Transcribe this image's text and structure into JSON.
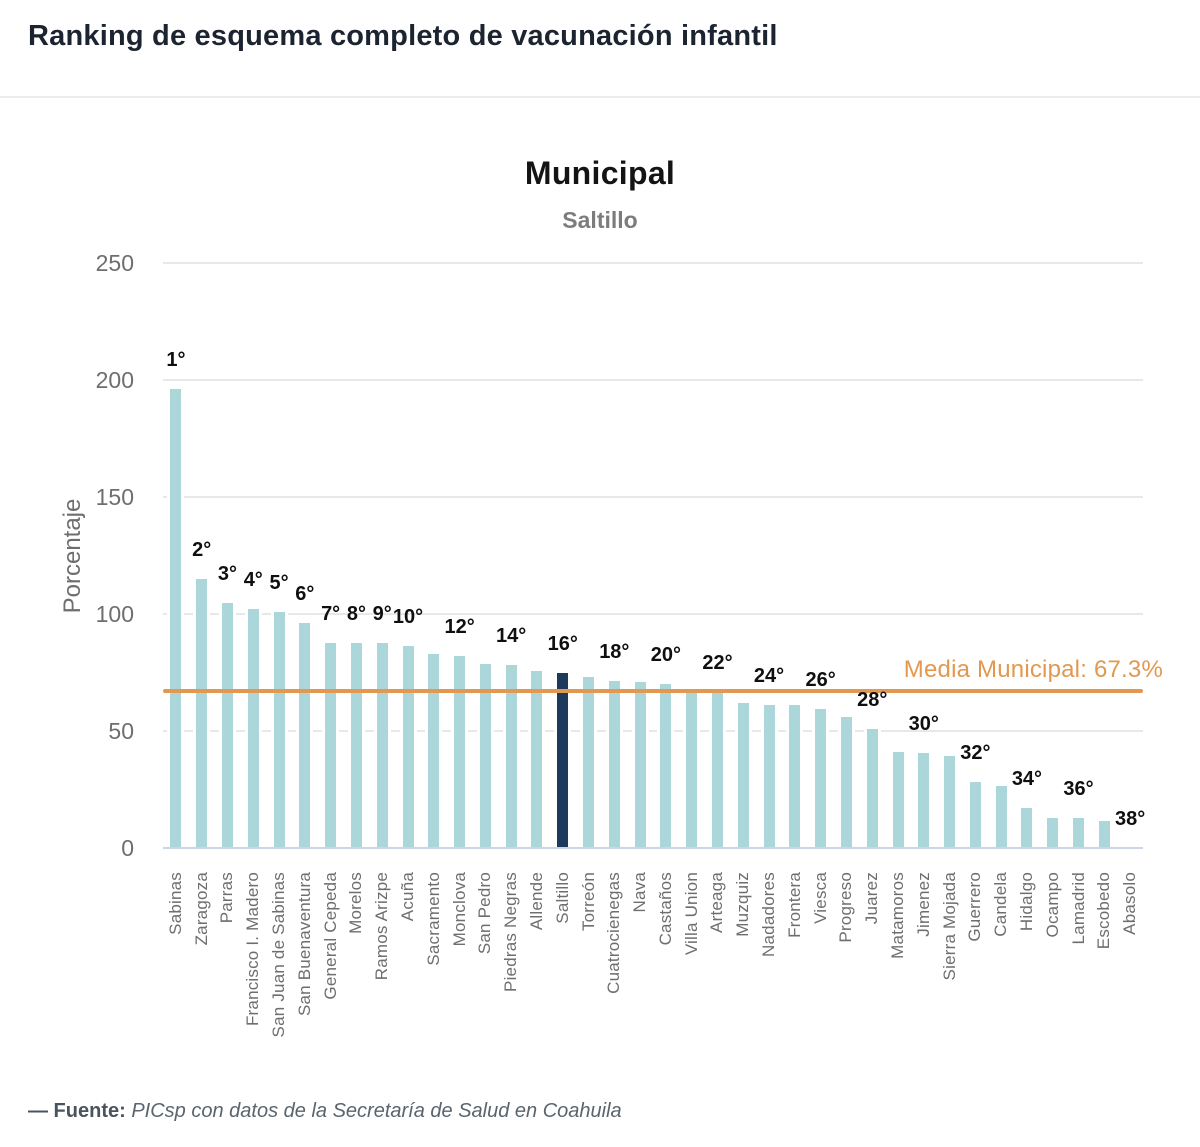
{
  "page": {
    "title": "Ranking de esquema completo de vacunación infantil"
  },
  "footer": {
    "source_label": "— Fuente:",
    "source_text": "PICsp con datos de la Secretaría de Salud en Coahuila"
  },
  "chart_data": {
    "type": "bar",
    "title": "Municipal",
    "subtitle": "Saltillo",
    "ylabel": "Porcentaje",
    "xlabel": "",
    "ylim": [
      0,
      250
    ],
    "yticks": [
      250,
      200,
      150,
      100,
      50,
      0
    ],
    "grid": true,
    "highlight_category": "Saltillo",
    "reference_line": {
      "label": "Media Municipal: 67.3%",
      "value": 67.3
    },
    "colors": {
      "bar": "#abd7db",
      "highlight": "#1c3a5c",
      "reference": "#e2984f"
    },
    "categories": [
      "Sabinas",
      "Zaragoza",
      "Parras",
      "Francisco I. Madero",
      "San Juan de Sabinas",
      "San Buenaventura",
      "General Cepeda",
      "Morelos",
      "Ramos Arizpe",
      "Acuña",
      "Sacramento",
      "Monclova",
      "San Pedro",
      "Piedras Negras",
      "Allende",
      "Saltillo",
      "Torreón",
      "Cuatrocienegas",
      "Nava",
      "Castaños",
      "Villa Union",
      "Arteaga",
      "Muzquiz",
      "Nadadores",
      "Frontera",
      "Viesca",
      "Progreso",
      "Juarez",
      "Matamoros",
      "Jimenez",
      "Sierra Mojada",
      "Guerrero",
      "Candela",
      "Hidalgo",
      "Ocampo",
      "Lamadrid",
      "Escobedo",
      "Abasolo"
    ],
    "values": [
      196,
      115,
      104.5,
      102,
      101,
      96,
      87.5,
      87.5,
      87.5,
      86.5,
      83,
      82,
      78.5,
      78,
      75.5,
      75,
      73,
      71.5,
      71,
      70,
      68,
      66.5,
      62,
      61,
      61,
      59.5,
      56,
      51,
      41,
      40.5,
      39.5,
      28,
      26.5,
      17,
      13,
      13,
      11.5,
      0
    ],
    "rank_labels": [
      "1°",
      "2°",
      "3°",
      "4°",
      "5°",
      "6°",
      "7°",
      "8°",
      "9°",
      "10°",
      "",
      "12°",
      "",
      "14°",
      "",
      "16°",
      "",
      "18°",
      "",
      "20°",
      "",
      "22°",
      "",
      "24°",
      "",
      "26°",
      "",
      "28°",
      "",
      "30°",
      "",
      "32°",
      "",
      "34°",
      "",
      "36°",
      "",
      "38°"
    ]
  }
}
